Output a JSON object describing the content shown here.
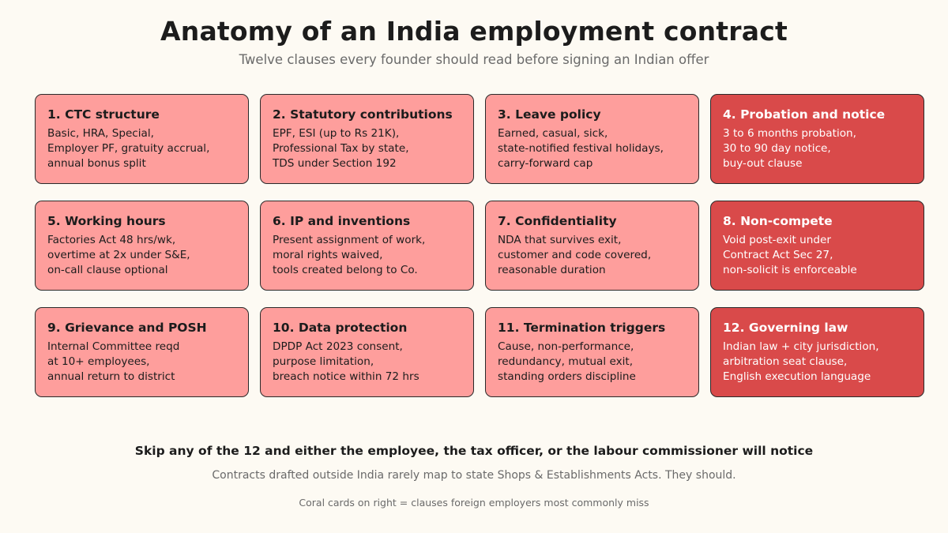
{
  "header": {
    "title": "Anatomy of an India employment contract",
    "subtitle": "Twelve clauses every founder should read before signing an Indian offer"
  },
  "colors": {
    "background": "#fdfaf3",
    "card_light": "#fe9e9c",
    "card_accent": "#d94a4a",
    "border": "#2a2a2a"
  },
  "cards": [
    {
      "title": "1. CTC structure",
      "lines": [
        "Basic, HRA, Special,",
        "Employer PF, gratuity accrual,",
        "annual bonus split"
      ],
      "accent": false
    },
    {
      "title": "2. Statutory contributions",
      "lines": [
        "EPF, ESI (up to Rs 21K),",
        "Professional Tax by state,",
        "TDS under Section 192"
      ],
      "accent": false
    },
    {
      "title": "3. Leave policy",
      "lines": [
        "Earned, casual, sick,",
        "state-notified festival holidays,",
        "carry-forward cap"
      ],
      "accent": false
    },
    {
      "title": "4. Probation and notice",
      "lines": [
        "3 to 6 months probation,",
        "30 to 90 day notice,",
        "buy-out clause"
      ],
      "accent": true
    },
    {
      "title": "5. Working hours",
      "lines": [
        "Factories Act 48 hrs/wk,",
        "overtime at 2x under S&E,",
        "on-call clause optional"
      ],
      "accent": false
    },
    {
      "title": "6. IP and inventions",
      "lines": [
        "Present assignment of work,",
        "moral rights waived,",
        "tools created belong to Co."
      ],
      "accent": false
    },
    {
      "title": "7. Confidentiality",
      "lines": [
        "NDA that survives exit,",
        "customer and code covered,",
        "reasonable duration"
      ],
      "accent": false
    },
    {
      "title": "8. Non-compete",
      "lines": [
        "Void post-exit under",
        "Contract Act Sec 27,",
        "non-solicit is enforceable"
      ],
      "accent": true
    },
    {
      "title": "9. Grievance and POSH",
      "lines": [
        "Internal Committee reqd",
        "at 10+ employees,",
        "annual return to district"
      ],
      "accent": false
    },
    {
      "title": "10. Data protection",
      "lines": [
        "DPDP Act 2023 consent,",
        "purpose limitation,",
        "breach notice within 72 hrs"
      ],
      "accent": false
    },
    {
      "title": "11. Termination triggers",
      "lines": [
        "Cause, non-performance,",
        "redundancy, mutual exit,",
        "standing orders discipline"
      ],
      "accent": false
    },
    {
      "title": "12. Governing law",
      "lines": [
        "Indian law + city jurisdiction,",
        "arbitration seat clause,",
        "English execution language"
      ],
      "accent": true
    }
  ],
  "footer": {
    "main": "Skip any of the 12 and either the employee, the tax officer, or the labour commissioner will notice",
    "sub": "Contracts drafted outside India rarely map to state Shops & Establishments Acts. They should.",
    "note": "Coral cards on right = clauses foreign employers most commonly miss"
  }
}
